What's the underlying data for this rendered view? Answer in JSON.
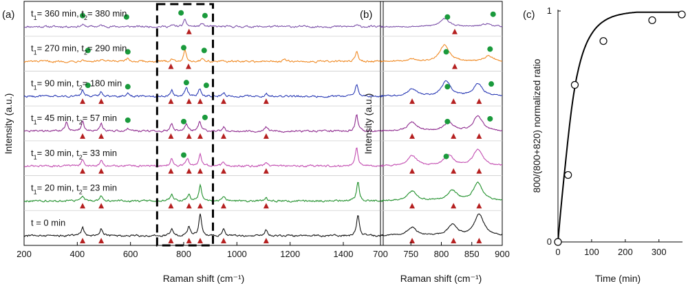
{
  "figure": {
    "panels": [
      "(a)",
      "(b)",
      "(c)"
    ]
  },
  "chart_data": [
    {
      "panel": "(a)",
      "type": "line",
      "title": "",
      "xlabel": "Raman shift (cm⁻¹)",
      "ylabel": "Intensity (a.u.)",
      "xlim": [
        200,
        1550
      ],
      "xticks": [
        200,
        400,
        600,
        800,
        1000,
        1200,
        1400
      ],
      "highlight_box": [
        700,
        910
      ],
      "series": [
        {
          "name": "t1 = 360 min, t2 = 380 min",
          "label_main": "t",
          "label_sub1": "1",
          "label_mid": "= 360 min, t",
          "label_sub2": "2",
          "label_end": "= 380 min",
          "color": "#7b4fa8",
          "peaks": [
            [
              420,
              3
            ],
            [
              490,
              2
            ],
            [
              760,
              2
            ],
            [
              805,
              10
            ],
            [
              870,
              5
            ],
            [
              1450,
              2
            ]
          ],
          "triangles": [
            820
          ],
          "circles": [
            420,
            585,
            790,
            880
          ]
        },
        {
          "name": "t1 = 270 min, t2 = 290 min",
          "label_main": "t",
          "label_sub1": "1",
          "label_mid": "= 270 min, t",
          "label_sub2": "2",
          "label_end": "= 290 min",
          "color": "#f08a24",
          "peaks": [
            [
              420,
              4
            ],
            [
              490,
              3
            ],
            [
              590,
              4
            ],
            [
              755,
              4
            ],
            [
              805,
              16
            ],
            [
              870,
              5
            ],
            [
              1180,
              3
            ],
            [
              1450,
              14
            ]
          ],
          "triangles": [
            752,
            818
          ],
          "circles": [
            440,
            590,
            800,
            877
          ]
        },
        {
          "name": "t1 = 90 min, t2 = 180 min",
          "label_main": "t",
          "label_sub1": "1",
          "label_mid": "= 90 min, t",
          "label_sub2": "2",
          "label_end": "= 180 min",
          "color": "#2b3bb5",
          "peaks": [
            [
              420,
              9
            ],
            [
              490,
              7
            ],
            [
              590,
              5
            ],
            [
              755,
              9
            ],
            [
              810,
              14
            ],
            [
              860,
              11
            ],
            [
              950,
              5
            ],
            [
              1110,
              4
            ],
            [
              1450,
              17
            ]
          ],
          "triangles": [
            420,
            490,
            752,
            820,
            862,
            950,
            1110
          ],
          "circles": [
            440,
            590,
            810,
            885
          ]
        },
        {
          "name": "t1 = 45 min, t2 = 57 min",
          "label_main": "t",
          "label_sub1": "1",
          "label_mid": "= 45 min, t",
          "label_sub2": "2",
          "label_end": "= 57 min",
          "color": "#8e2a8e",
          "peaks": [
            [
              360,
              14
            ],
            [
              420,
              14
            ],
            [
              490,
              11
            ],
            [
              590,
              4
            ],
            [
              755,
              11
            ],
            [
              810,
              11
            ],
            [
              860,
              15
            ],
            [
              950,
              6
            ],
            [
              1110,
              6
            ],
            [
              1450,
              24
            ]
          ],
          "triangles": [
            420,
            490,
            752,
            820,
            862,
            950,
            1110
          ],
          "circles": [
            590,
            800,
            880
          ]
        },
        {
          "name": "t1 = 30 min, t2 = 33 min",
          "label_main": "t",
          "label_sub1": "1",
          "label_mid": "= 30 min, t",
          "label_sub2": "2",
          "label_end": "= 33 min",
          "color": "#c24bb0",
          "peaks": [
            [
              420,
              10
            ],
            [
              490,
              8
            ],
            [
              755,
              11
            ],
            [
              815,
              11
            ],
            [
              862,
              19
            ],
            [
              950,
              6
            ],
            [
              1110,
              5
            ],
            [
              1450,
              26
            ]
          ],
          "triangles": [
            420,
            490,
            752,
            820,
            862,
            950,
            1110
          ],
          "circles": [
            800
          ]
        },
        {
          "name": "t1 = 20 min, t2 = 23 min",
          "label_main": "t",
          "label_sub1": "1",
          "label_mid": "= 20 min, t",
          "label_sub2": "2",
          "label_end": "= 23 min",
          "color": "#1f8f2a",
          "peaks": [
            [
              420,
              7
            ],
            [
              490,
              7
            ],
            [
              755,
              9
            ],
            [
              820,
              11
            ],
            [
              862,
              23
            ],
            [
              950,
              6
            ],
            [
              1110,
              4
            ],
            [
              1455,
              28
            ]
          ],
          "triangles": [
            420,
            490,
            752,
            820,
            862,
            950,
            1110
          ],
          "circles": []
        },
        {
          "name": "t = 0 min",
          "label_main": "t = 0 min",
          "label_sub1": "",
          "label_mid": "",
          "label_sub2": "",
          "label_end": "",
          "color": "#111111",
          "peaks": [
            [
              420,
              13
            ],
            [
              490,
              11
            ],
            [
              755,
              11
            ],
            [
              820,
              13
            ],
            [
              862,
              32
            ],
            [
              950,
              10
            ],
            [
              1110,
              9
            ],
            [
              1455,
              30
            ]
          ],
          "triangles": [
            420,
            490,
            752,
            820,
            862,
            950,
            1110
          ],
          "circles": []
        }
      ]
    },
    {
      "panel": "(b)",
      "type": "line",
      "title": "",
      "xlabel": "Raman shift (cm⁻¹)",
      "ylabel": "Intensity (a.u.)",
      "xlim": [
        700,
        900
      ],
      "xticks": [
        700,
        750,
        800,
        850,
        900
      ],
      "series": [
        {
          "name": "360 min",
          "color": "#7b4fa8",
          "peaks": [
            [
              805,
              12
            ],
            [
              875,
              4
            ]
          ],
          "triangles": [
            822
          ],
          "circles": [
            810,
            885
          ]
        },
        {
          "name": "270 min",
          "color": "#f08a24",
          "peaks": [
            [
              752,
              3
            ],
            [
              805,
              24
            ],
            [
              878,
              8
            ]
          ],
          "triangles": [
            822
          ],
          "circles": [
            808,
            880
          ]
        },
        {
          "name": "90 min",
          "color": "#2b3bb5",
          "peaks": [
            [
              752,
              10
            ],
            [
              808,
              22
            ],
            [
              860,
              18
            ]
          ],
          "triangles": [
            752,
            820,
            862
          ],
          "circles": [
            810,
            882
          ]
        },
        {
          "name": "45 min",
          "color": "#8e2a8e",
          "peaks": [
            [
              752,
              13
            ],
            [
              812,
              13
            ],
            [
              860,
              22
            ]
          ],
          "triangles": [
            752,
            820,
            862
          ],
          "circles": [
            810,
            880
          ]
        },
        {
          "name": "30 min",
          "color": "#c24bb0",
          "peaks": [
            [
              752,
              15
            ],
            [
              812,
              16
            ],
            [
              860,
              24
            ]
          ],
          "triangles": [
            752,
            820,
            862
          ],
          "circles": [
            808
          ]
        },
        {
          "name": "20 min",
          "color": "#1f8f2a",
          "peaks": [
            [
              752,
              14
            ],
            [
              818,
              15
            ],
            [
              860,
              26
            ]
          ],
          "triangles": [
            752,
            820,
            862
          ],
          "circles": []
        },
        {
          "name": "0 min",
          "color": "#111111",
          "peaks": [
            [
              752,
              12
            ],
            [
              818,
              15
            ],
            [
              862,
              32
            ]
          ],
          "triangles": [
            752,
            820,
            862
          ],
          "circles": []
        }
      ]
    },
    {
      "panel": "(c)",
      "type": "scatter",
      "title": "",
      "xlabel": "Time (min)",
      "ylabel": "800/(800+820) normalized ratio",
      "xlim": [
        0,
        370
      ],
      "ylim": [
        0,
        1
      ],
      "xticks": [
        0,
        100,
        200,
        300
      ],
      "yticks": [
        0,
        1
      ],
      "x": [
        0,
        30,
        50,
        135,
        280,
        368
      ],
      "y": [
        0,
        0.29,
        0.68,
        0.87,
        0.96,
        0.985
      ]
    }
  ],
  "colors": {
    "triangle": "#b52020",
    "circle": "#1a9a3c",
    "axis": "#000000"
  }
}
